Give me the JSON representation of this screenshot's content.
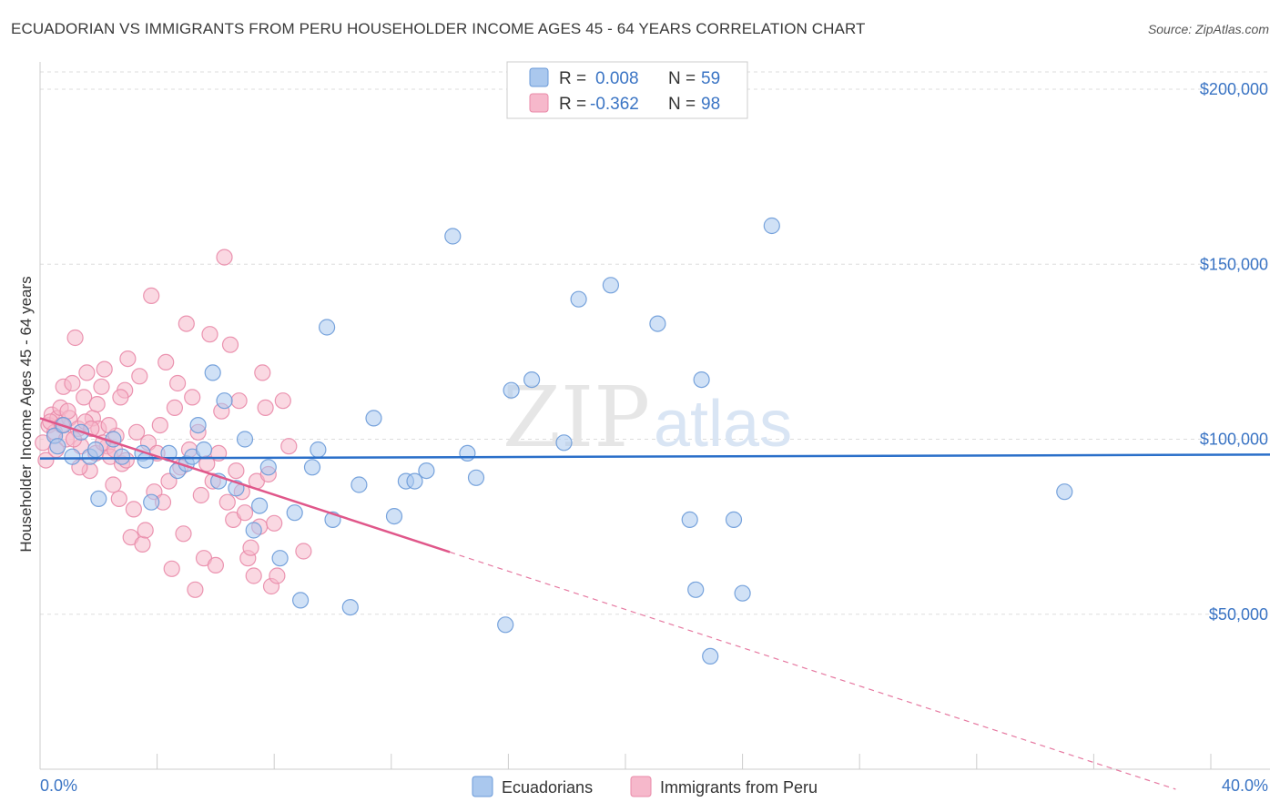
{
  "title": "ECUADORIAN VS IMMIGRANTS FROM PERU HOUSEHOLDER INCOME AGES 45 - 64 YEARS CORRELATION CHART",
  "source": "Source: ZipAtlas.com",
  "watermark": {
    "part1": "ZIP",
    "part2": "atlas"
  },
  "colors": {
    "ecuadorians_fill": "#aac8ee",
    "ecuadorians_stroke": "#6a9ad8",
    "ecuadorians_line": "#2a6fc9",
    "peru_fill": "#f6b8cb",
    "peru_stroke": "#e98aa8",
    "peru_line": "#e0578a",
    "axis_text": "#3a74c4",
    "grid": "#dddddd"
  },
  "legend": {
    "r_label": "R =",
    "n_label": "N =",
    "rows": [
      {
        "series": "Ecuadorians",
        "r": "0.008",
        "n": "59"
      },
      {
        "series": "Immigrants from Peru",
        "r": "-0.362",
        "n": "98"
      }
    ]
  },
  "chart_data": {
    "type": "scatter",
    "title": "ECUADORIAN VS IMMIGRANTS FROM PERU HOUSEHOLDER INCOME AGES 45 - 64 YEARS CORRELATION CHART",
    "xlabel": "",
    "ylabel": "Householder Income Ages 45 - 64 years",
    "xlim": [
      0,
      40
    ],
    "ylim": [
      0,
      200000
    ],
    "x_tick_labels": [
      "0.0%",
      "40.0%"
    ],
    "y_tick_values": [
      50000,
      100000,
      150000,
      200000
    ],
    "y_tick_labels": [
      "$50,000",
      "$100,000",
      "$150,000",
      "$200,000"
    ],
    "grid": true,
    "legend_position": "top-center",
    "series": [
      {
        "name": "Ecuadorians",
        "r": 0.008,
        "n": 59,
        "trend": {
          "x0": 0,
          "y0": 94500,
          "x1": 40,
          "y1": 95600,
          "dashed_from": null
        },
        "points": [
          [
            0.5,
            101000
          ],
          [
            0.8,
            104000
          ],
          [
            1.1,
            95000
          ],
          [
            1.4,
            102000
          ],
          [
            1.7,
            95000
          ],
          [
            2.0,
            83000
          ],
          [
            2.5,
            100000
          ],
          [
            2.8,
            95000
          ],
          [
            3.5,
            96000
          ],
          [
            3.6,
            94000
          ],
          [
            3.8,
            82000
          ],
          [
            4.4,
            96000
          ],
          [
            4.7,
            91000
          ],
          [
            5.0,
            93000
          ],
          [
            5.2,
            95000
          ],
          [
            5.4,
            104000
          ],
          [
            5.9,
            119000
          ],
          [
            6.1,
            88000
          ],
          [
            6.3,
            111000
          ],
          [
            6.7,
            86000
          ],
          [
            7.0,
            100000
          ],
          [
            7.3,
            74000
          ],
          [
            7.5,
            81000
          ],
          [
            7.8,
            92000
          ],
          [
            8.2,
            66000
          ],
          [
            8.7,
            79000
          ],
          [
            8.9,
            54000
          ],
          [
            9.3,
            92000
          ],
          [
            9.5,
            97000
          ],
          [
            9.8,
            132000
          ],
          [
            10.0,
            77000
          ],
          [
            10.6,
            52000
          ],
          [
            10.9,
            87000
          ],
          [
            11.4,
            106000
          ],
          [
            12.1,
            78000
          ],
          [
            12.5,
            88000
          ],
          [
            12.8,
            88000
          ],
          [
            13.2,
            91000
          ],
          [
            14.1,
            158000
          ],
          [
            14.6,
            96000
          ],
          [
            14.9,
            89000
          ],
          [
            15.9,
            47000
          ],
          [
            16.1,
            114000
          ],
          [
            16.8,
            117000
          ],
          [
            17.9,
            99000
          ],
          [
            18.4,
            140000
          ],
          [
            19.5,
            144000
          ],
          [
            21.1,
            133000
          ],
          [
            22.2,
            77000
          ],
          [
            22.4,
            57000
          ],
          [
            22.6,
            117000
          ],
          [
            22.9,
            38000
          ],
          [
            23.7,
            77000
          ],
          [
            24.0,
            56000
          ],
          [
            25.0,
            161000
          ],
          [
            35.0,
            85000
          ],
          [
            0.6,
            98000
          ],
          [
            1.9,
            97000
          ],
          [
            5.6,
            97000
          ]
        ]
      },
      {
        "name": "Immigrants from Peru",
        "r": -0.362,
        "n": 98,
        "trend": {
          "x0": 0,
          "y0": 106000,
          "x1": 38.8,
          "y1": 0,
          "dashed_from": 14.0
        },
        "points": [
          [
            0.1,
            99000
          ],
          [
            0.2,
            94000
          ],
          [
            0.3,
            104000
          ],
          [
            0.4,
            107000
          ],
          [
            0.5,
            102000
          ],
          [
            0.6,
            106000
          ],
          [
            0.7,
            109000
          ],
          [
            0.8,
            115000
          ],
          [
            0.9,
            100000
          ],
          [
            1.0,
            106000
          ],
          [
            1.1,
            116000
          ],
          [
            1.2,
            129000
          ],
          [
            1.3,
            103000
          ],
          [
            1.4,
            98000
          ],
          [
            1.5,
            112000
          ],
          [
            1.6,
            119000
          ],
          [
            1.7,
            91000
          ],
          [
            1.8,
            106000
          ],
          [
            1.9,
            96000
          ],
          [
            2.0,
            103000
          ],
          [
            2.1,
            115000
          ],
          [
            2.2,
            120000
          ],
          [
            2.3,
            98000
          ],
          [
            2.4,
            95000
          ],
          [
            2.5,
            87000
          ],
          [
            2.6,
            101000
          ],
          [
            2.7,
            83000
          ],
          [
            2.8,
            93000
          ],
          [
            2.9,
            114000
          ],
          [
            3.0,
            123000
          ],
          [
            3.1,
            72000
          ],
          [
            3.2,
            80000
          ],
          [
            3.3,
            102000
          ],
          [
            3.4,
            118000
          ],
          [
            3.5,
            70000
          ],
          [
            3.6,
            74000
          ],
          [
            3.7,
            99000
          ],
          [
            3.8,
            141000
          ],
          [
            3.9,
            85000
          ],
          [
            4.0,
            96000
          ],
          [
            4.1,
            104000
          ],
          [
            4.2,
            82000
          ],
          [
            4.3,
            122000
          ],
          [
            4.4,
            88000
          ],
          [
            4.5,
            63000
          ],
          [
            4.6,
            109000
          ],
          [
            4.7,
            116000
          ],
          [
            4.8,
            92000
          ],
          [
            4.9,
            73000
          ],
          [
            5.0,
            133000
          ],
          [
            5.1,
            97000
          ],
          [
            5.2,
            112000
          ],
          [
            5.3,
            57000
          ],
          [
            5.4,
            102000
          ],
          [
            5.5,
            84000
          ],
          [
            5.6,
            66000
          ],
          [
            5.7,
            93000
          ],
          [
            5.8,
            130000
          ],
          [
            5.9,
            88000
          ],
          [
            6.0,
            64000
          ],
          [
            6.1,
            96000
          ],
          [
            6.2,
            108000
          ],
          [
            6.3,
            152000
          ],
          [
            6.4,
            82000
          ],
          [
            6.5,
            127000
          ],
          [
            6.6,
            77000
          ],
          [
            6.7,
            91000
          ],
          [
            6.8,
            111000
          ],
          [
            6.9,
            85000
          ],
          [
            7.0,
            79000
          ],
          [
            7.1,
            66000
          ],
          [
            7.2,
            69000
          ],
          [
            7.3,
            61000
          ],
          [
            7.4,
            88000
          ],
          [
            7.5,
            75000
          ],
          [
            7.6,
            119000
          ],
          [
            7.7,
            109000
          ],
          [
            7.8,
            90000
          ],
          [
            7.9,
            58000
          ],
          [
            8.0,
            76000
          ],
          [
            8.1,
            61000
          ],
          [
            8.3,
            111000
          ],
          [
            8.5,
            98000
          ],
          [
            9.0,
            68000
          ],
          [
            0.35,
            105000
          ],
          [
            0.55,
            97000
          ],
          [
            0.75,
            104000
          ],
          [
            0.95,
            108000
          ],
          [
            1.15,
            100000
          ],
          [
            1.35,
            92000
          ],
          [
            1.55,
            105000
          ],
          [
            1.75,
            103000
          ],
          [
            1.95,
            110000
          ],
          [
            2.15,
            99000
          ],
          [
            2.35,
            104000
          ],
          [
            2.55,
            97000
          ],
          [
            2.75,
            112000
          ],
          [
            2.95,
            94000
          ]
        ]
      }
    ]
  },
  "bottom_legend": [
    {
      "label": "Ecuadorians"
    },
    {
      "label": "Immigrants from Peru"
    }
  ]
}
